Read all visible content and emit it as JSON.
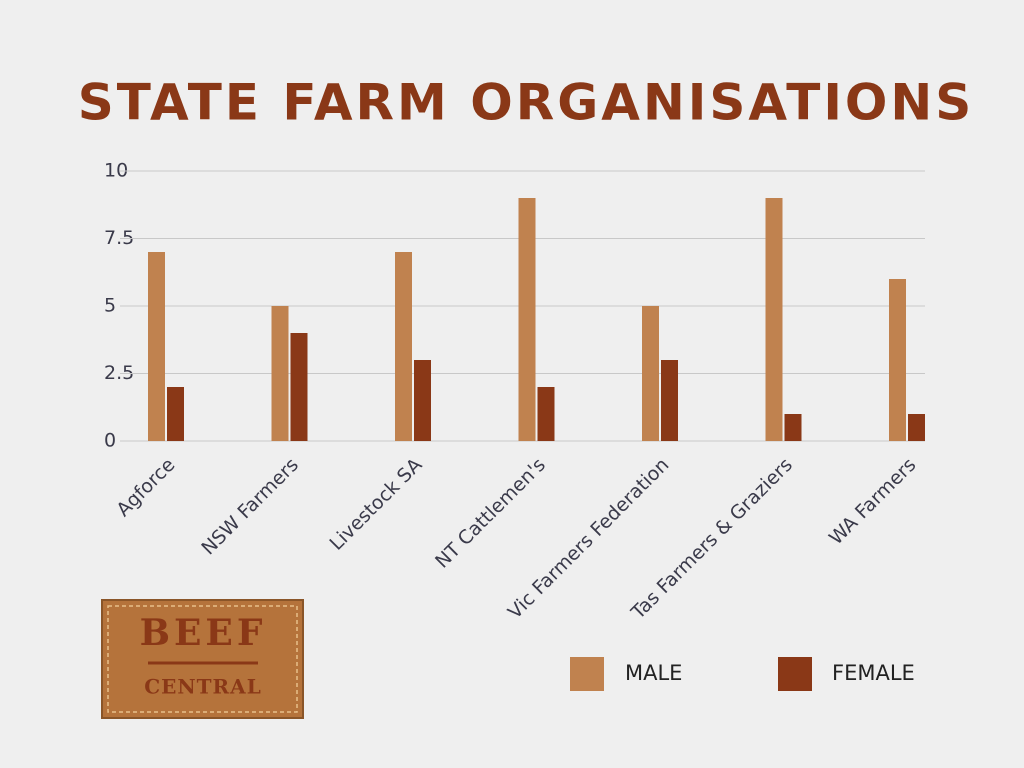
{
  "chart_data": {
    "type": "bar",
    "title": "STATE FARM ORGANISATIONS",
    "categories": [
      "Agforce",
      "NSW Farmers",
      "Livestock SA",
      "NT Cattlemen's",
      "Vic Farmers Federation",
      "Tas Farmers & Graziers",
      "WA Farmers"
    ],
    "series": [
      {
        "name": "MALE",
        "color": "#c0824f",
        "values": [
          7,
          5,
          7,
          9,
          5,
          9,
          6
        ]
      },
      {
        "name": "FEMALE",
        "color": "#8a3817",
        "values": [
          2,
          4,
          3,
          2,
          3,
          1,
          1
        ]
      }
    ],
    "ylim": [
      0,
      10
    ],
    "yticks": [
      0,
      2.5,
      5,
      7.5,
      10
    ],
    "grid": true,
    "legend": "bottom-right"
  },
  "logo": {
    "line1": "BEEF",
    "line2": "CENTRAL"
  }
}
